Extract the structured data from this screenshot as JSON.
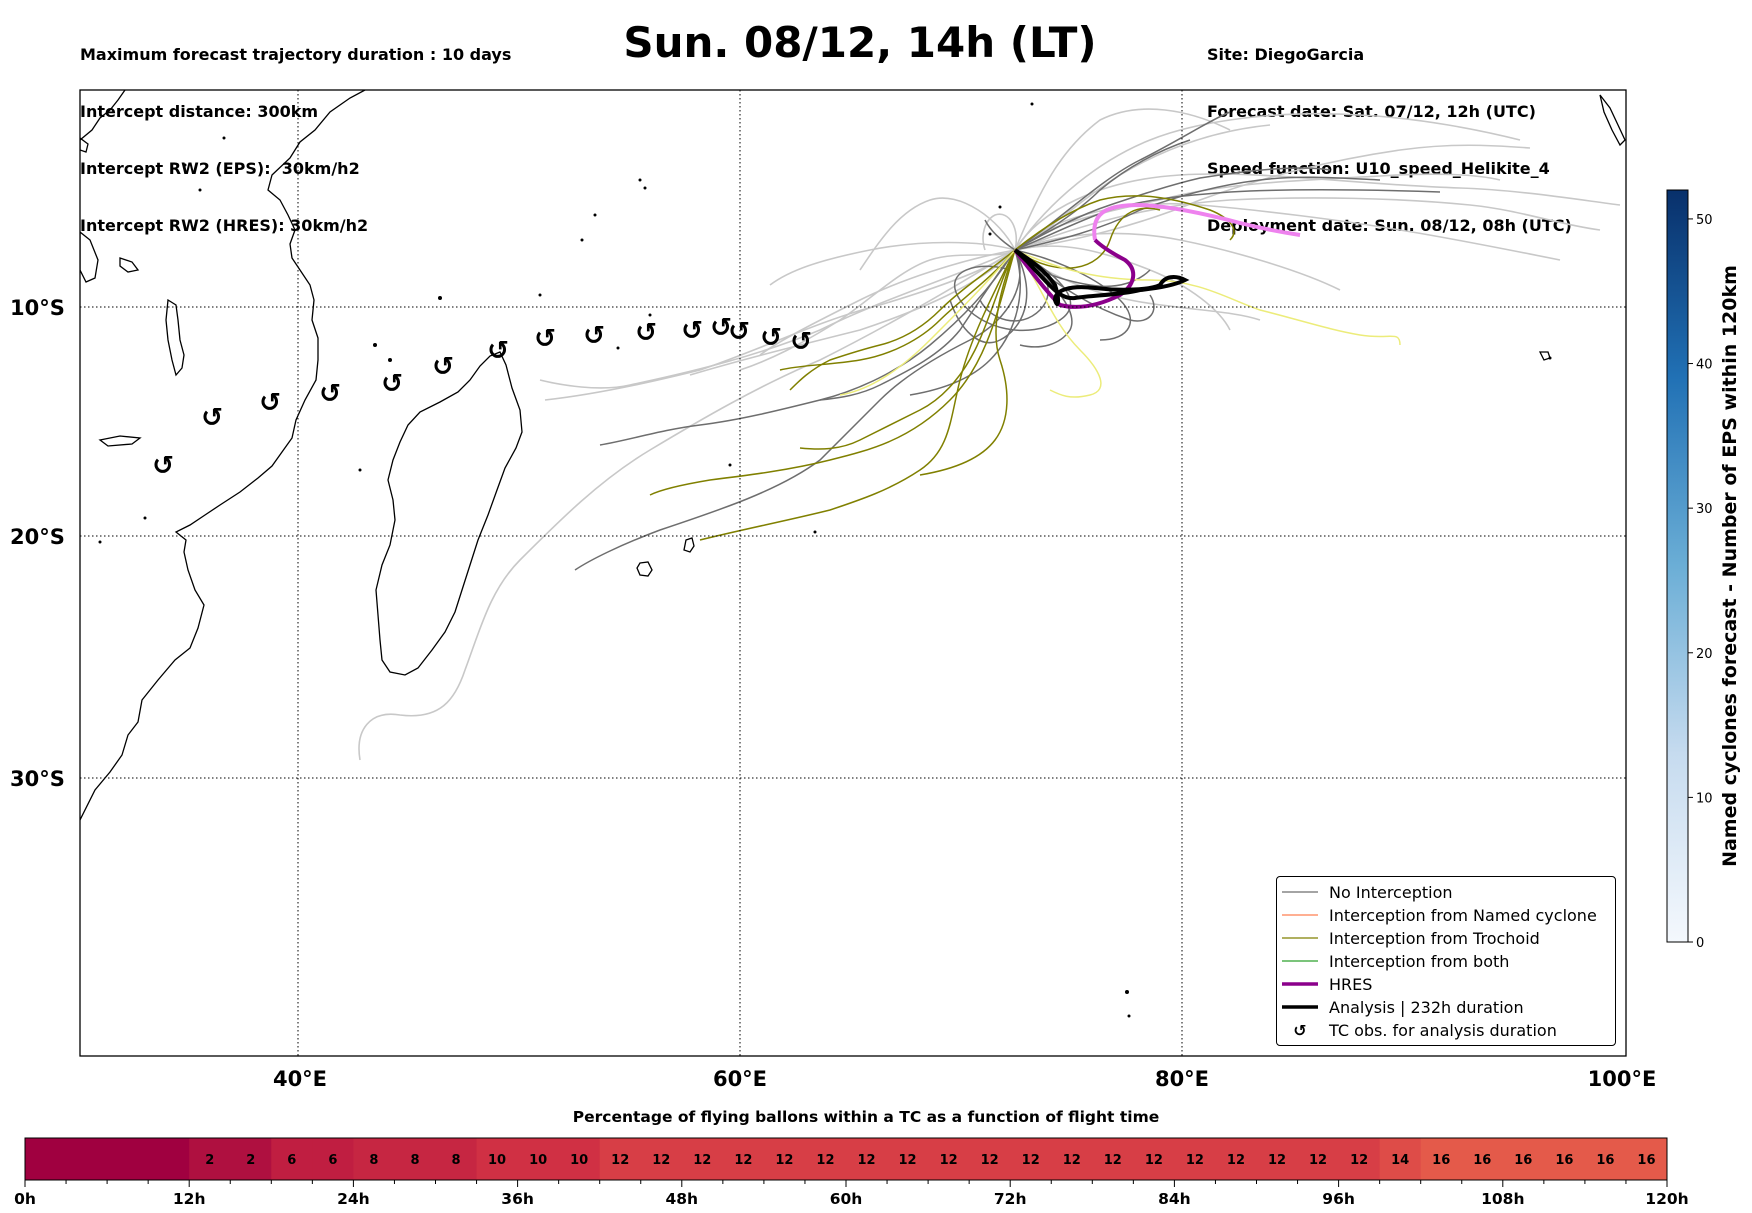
{
  "header": {
    "left": [
      "Maximum forecast trajectory duration : 10 days",
      "Intercept distance: 300km",
      "Intercept RW2 (EPS):  30km/h2",
      "Intercept RW2 (HRES): 30km/h2"
    ],
    "title": "Sun. 08/12, 14h (LT)",
    "right": [
      "Site: DiegoGarcia",
      "Forecast date: Sat. 07/12, 12h (UTC)",
      "Speed function: U10_speed_Helikite_4",
      "Deployment date: Sun. 08/12, 08h (UTC)"
    ]
  },
  "map": {
    "lat_labels": [
      "10°S",
      "20°S",
      "30°S"
    ],
    "lon_labels": [
      "40°E",
      "60°E",
      "80°E",
      "100°E"
    ],
    "colors": {
      "no_interception": "#6e6e6e",
      "no_interception_light": "#c8c8c8",
      "named_cyclone": "#ff7f50",
      "trochoid": "#808000",
      "trochoid_light": "#ecec7a",
      "both": "#2ca02c",
      "hres": "#8b008b",
      "hres_light": "#ee82ee",
      "analysis": "#000000"
    },
    "tc_symbol": "↺"
  },
  "legend": [
    {
      "label": "No Interception",
      "kind": "line",
      "color": "#6e6e6e",
      "width": 1.2
    },
    {
      "label": "Interception from Named cyclone",
      "kind": "line",
      "color": "#ff7f50",
      "width": 1.2
    },
    {
      "label": "Interception from Trochoid",
      "kind": "line",
      "color": "#808000",
      "width": 1.2
    },
    {
      "label": "Interception from both",
      "kind": "line",
      "color": "#2ca02c",
      "width": 1.2
    },
    {
      "label": "HRES",
      "kind": "line",
      "color": "#8b008b",
      "width": 3.5
    },
    {
      "label": "Analysis | 232h duration",
      "kind": "line",
      "color": "#000000",
      "width": 3.5
    },
    {
      "label": "TC obs. for analysis duration",
      "kind": "symbol",
      "color": "#000000",
      "width": 0
    }
  ],
  "colorbar": {
    "label": "Named cyclones forecast - Number of EPS within 120km",
    "ticks": [
      "0",
      "10",
      "20",
      "30",
      "40",
      "50"
    ],
    "tick_values": [
      0,
      10,
      20,
      30,
      40,
      50
    ],
    "max": 52,
    "color_low": "#f4f8fd",
    "color_high": "#08306b"
  },
  "timebar": {
    "title": "Percentage of flying ballons within a TC as a function of flight time",
    "hour_labels": [
      "0h",
      "12h",
      "24h",
      "36h",
      "48h",
      "60h",
      "72h",
      "84h",
      "96h",
      "108h",
      "120h"
    ],
    "cells": [
      {
        "value": 0,
        "label": ""
      },
      {
        "value": 0,
        "label": ""
      },
      {
        "value": 0,
        "label": ""
      },
      {
        "value": 0,
        "label": ""
      },
      {
        "value": 2,
        "label": "2"
      },
      {
        "value": 2,
        "label": "2"
      },
      {
        "value": 6,
        "label": "6"
      },
      {
        "value": 6,
        "label": "6"
      },
      {
        "value": 8,
        "label": "8"
      },
      {
        "value": 8,
        "label": "8"
      },
      {
        "value": 8,
        "label": "8"
      },
      {
        "value": 10,
        "label": "10"
      },
      {
        "value": 10,
        "label": "10"
      },
      {
        "value": 10,
        "label": "10"
      },
      {
        "value": 12,
        "label": "12"
      },
      {
        "value": 12,
        "label": "12"
      },
      {
        "value": 12,
        "label": "12"
      },
      {
        "value": 12,
        "label": "12"
      },
      {
        "value": 12,
        "label": "12"
      },
      {
        "value": 12,
        "label": "12"
      },
      {
        "value": 12,
        "label": "12"
      },
      {
        "value": 12,
        "label": "12"
      },
      {
        "value": 12,
        "label": "12"
      },
      {
        "value": 12,
        "label": "12"
      },
      {
        "value": 12,
        "label": "12"
      },
      {
        "value": 12,
        "label": "12"
      },
      {
        "value": 12,
        "label": "12"
      },
      {
        "value": 12,
        "label": "12"
      },
      {
        "value": 12,
        "label": "12"
      },
      {
        "value": 12,
        "label": "12"
      },
      {
        "value": 12,
        "label": "12"
      },
      {
        "value": 12,
        "label": "12"
      },
      {
        "value": 12,
        "label": "12"
      },
      {
        "value": 14,
        "label": "14"
      },
      {
        "value": 16,
        "label": "16"
      },
      {
        "value": 16,
        "label": "16"
      },
      {
        "value": 16,
        "label": "16"
      },
      {
        "value": 16,
        "label": "16"
      },
      {
        "value": 16,
        "label": "16"
      },
      {
        "value": 16,
        "label": "16"
      }
    ]
  }
}
